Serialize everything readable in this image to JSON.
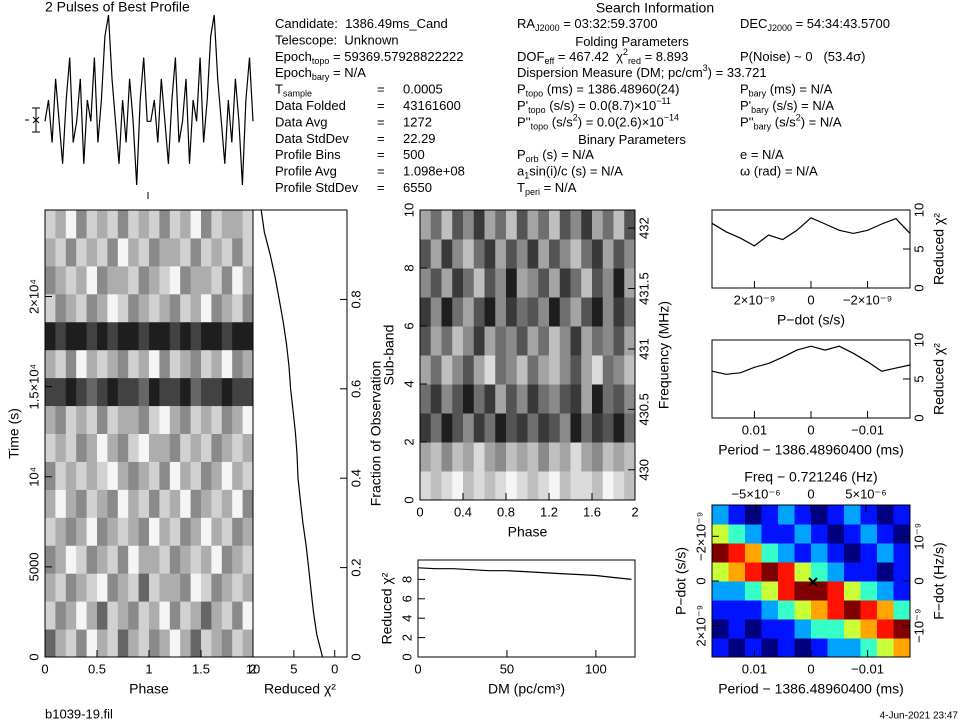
{
  "filename": "b1039-19.fil",
  "date": "4-Jun-2021 23:47",
  "info": {
    "rows": [
      [
        [
          "Candidate:  1386.49ms_Cand"
        ]
      ],
      [
        [
          "Telescope:  Unknown"
        ]
      ],
      [
        [
          "Epoch",
          {
            "sub": "topo"
          },
          " = 59369.57928822222"
        ]
      ],
      [
        [
          "Epoch",
          {
            "sub": "bary"
          },
          " = N/A"
        ]
      ],
      [
        [
          "T",
          {
            "sub": "sample"
          }
        ],
        [
          "="
        ],
        [
          "0.0005"
        ]
      ],
      [
        [
          "Data Folded"
        ],
        [
          "="
        ],
        [
          "43161600"
        ]
      ],
      [
        [
          "Data Avg"
        ],
        [
          "="
        ],
        [
          "1272"
        ]
      ],
      [
        [
          "Data StdDev"
        ],
        [
          "="
        ],
        [
          "22.29"
        ]
      ],
      [
        [
          "Profile Bins"
        ],
        [
          "="
        ],
        [
          "500"
        ]
      ],
      [
        [
          "Profile Avg"
        ],
        [
          "="
        ],
        [
          "1.098e+08"
        ]
      ],
      [
        [
          "Profile StdDev"
        ],
        [
          "="
        ],
        [
          "6550"
        ]
      ]
    ]
  },
  "search": {
    "title": "Search Information",
    "rows": [
      [
        [
          "RA",
          {
            "sub": "J2000"
          },
          " = 03:32:59.3700"
        ],
        [
          "DEC",
          {
            "sub": "J2000"
          },
          " = 54:34:43.5700"
        ]
      ],
      {
        "heading": "Folding Parameters"
      },
      [
        [
          "DOF",
          {
            "sub": "eff"
          },
          " = 467.42  χ",
          {
            "sup": "2"
          },
          {
            "sub": "red"
          },
          " = 8.893"
        ],
        [
          "P(Noise) ~ 0   (53.4σ)"
        ]
      ],
      [
        [
          "Dispersion Measure (DM; pc/cm",
          {
            "sup": "3"
          },
          ") = 33.721"
        ]
      ],
      [
        [
          "P",
          {
            "sub": "topo"
          },
          " (ms) = 1386.48960(24)"
        ],
        [
          "P",
          {
            "sub": "bary"
          },
          " (ms) = N/A"
        ]
      ],
      [
        [
          "P'",
          {
            "sub": "topo"
          },
          " (s/s) = 0.0(8.7)×10",
          {
            "sup": "−11"
          }
        ],
        [
          "P'",
          {
            "sub": "bary"
          },
          " (s/s) = N/A"
        ]
      ],
      [
        [
          "P''",
          {
            "sub": "topo"
          },
          " (s/s",
          {
            "sup": "2"
          },
          ") = 0.0(2.6)×10",
          {
            "sup": "−14"
          }
        ],
        [
          "P''",
          {
            "sub": "bary"
          },
          " (s/s",
          {
            "sup": "2"
          },
          ") = N/A"
        ]
      ],
      {
        "heading": "Binary Parameters"
      },
      [
        [
          "P",
          {
            "sub": "orb"
          },
          " (s) = N/A"
        ],
        [
          "e = N/A"
        ]
      ],
      [
        [
          "a",
          {
            "sub": "1"
          },
          "sin(i)/c (s) = N/A"
        ],
        [
          "ω (rad) = N/A"
        ]
      ],
      [
        [
          "T",
          {
            "sub": "peri"
          },
          " = N/A"
        ]
      ]
    ]
  },
  "chart_data": [
    {
      "type": "line",
      "title": "2 Pulses of Best Profile",
      "color": "#000000",
      "values": [
        5,
        6,
        4,
        7,
        5,
        3,
        6,
        8,
        4,
        5,
        7,
        3,
        6,
        5,
        8,
        4,
        6,
        9,
        10,
        7,
        5,
        3,
        6,
        4,
        7,
        5,
        2,
        6,
        8,
        5,
        5,
        6,
        4,
        7,
        5,
        3,
        6,
        8,
        4,
        5,
        7,
        3,
        6,
        5,
        8,
        4,
        6,
        9,
        10,
        7,
        5,
        3,
        6,
        4,
        7,
        5,
        2,
        6,
        8,
        5
      ]
    },
    {
      "type": "heatmap",
      "colormap": "gray",
      "xlabel": "Phase",
      "ylabel": "Time (s)",
      "xlim": [
        0,
        2
      ],
      "xticks": [
        0,
        0.5,
        1,
        1.5,
        2
      ],
      "ylim": [
        0,
        24800
      ],
      "yticks": [
        0,
        5000,
        {
          "value": 10000,
          "label": "10⁴"
        },
        {
          "value": 15000,
          "label": "1.5×10⁴"
        },
        {
          "value": 20000,
          "label": "2×10⁴"
        }
      ],
      "values": [
        [
          3,
          5,
          6,
          4,
          7,
          5,
          6,
          3,
          5,
          6,
          4,
          5,
          7,
          5,
          3,
          6,
          5,
          4,
          6,
          5
        ],
        [
          6,
          4,
          5,
          7,
          5,
          3,
          6,
          5,
          4,
          6,
          5,
          7,
          4,
          6,
          5,
          3,
          5,
          6,
          4,
          7
        ],
        [
          5,
          6,
          4,
          5,
          6,
          7,
          4,
          5,
          6,
          3,
          6,
          5,
          5,
          4,
          7,
          6,
          4,
          5,
          6,
          5
        ],
        [
          4,
          5,
          7,
          6,
          4,
          5,
          6,
          4,
          7,
          5,
          5,
          6,
          4,
          5,
          6,
          5,
          7,
          4,
          5,
          6
        ],
        [
          6,
          5,
          4,
          5,
          7,
          4,
          5,
          6,
          5,
          4,
          7,
          5,
          6,
          4,
          5,
          7,
          5,
          6,
          4,
          5
        ],
        [
          5,
          7,
          5,
          4,
          6,
          5,
          4,
          7,
          5,
          6,
          4,
          6,
          5,
          7,
          4,
          5,
          6,
          5,
          7,
          4
        ],
        [
          4,
          6,
          5,
          6,
          5,
          6,
          7,
          5,
          4,
          5,
          6,
          4,
          7,
          5,
          6,
          4,
          5,
          7,
          5,
          6
        ],
        [
          6,
          5,
          6,
          4,
          5,
          7,
          5,
          4,
          6,
          7,
          5,
          5,
          4,
          6,
          5,
          6,
          4,
          5,
          6,
          5
        ],
        [
          5,
          4,
          6,
          5,
          6,
          4,
          6,
          5,
          5,
          4,
          6,
          7,
          5,
          4,
          6,
          5,
          6,
          4,
          5,
          7
        ],
        [
          2,
          2,
          1,
          2,
          3,
          2,
          1,
          2,
          2,
          3,
          1,
          2,
          2,
          1,
          3,
          2,
          2,
          1,
          2,
          2
        ],
        [
          5,
          6,
          4,
          7,
          5,
          6,
          5,
          4,
          6,
          5,
          7,
          4,
          6,
          5,
          4,
          6,
          5,
          7,
          4,
          5
        ],
        [
          1,
          2,
          1,
          1,
          2,
          1,
          2,
          1,
          1,
          2,
          1,
          1,
          2,
          1,
          2,
          1,
          1,
          2,
          1,
          1
        ],
        [
          6,
          4,
          5,
          6,
          4,
          5,
          7,
          6,
          4,
          5,
          6,
          5,
          4,
          6,
          5,
          7,
          4,
          5,
          6,
          4
        ],
        [
          4,
          5,
          6,
          5,
          7,
          4,
          5,
          5,
          6,
          4,
          5,
          6,
          7,
          4,
          5,
          5,
          6,
          4,
          7,
          5
        ],
        [
          5,
          6,
          4,
          6,
          5,
          6,
          4,
          7,
          5,
          6,
          4,
          5,
          5,
          6,
          4,
          6,
          5,
          6,
          4,
          6
        ],
        [
          6,
          5,
          7,
          4,
          6,
          5,
          6,
          4,
          6,
          5,
          6,
          4,
          6,
          5,
          7,
          4,
          6,
          5,
          5,
          6
        ]
      ]
    },
    {
      "type": "trace",
      "color": "#000000",
      "xlabel": "Reduced χ²",
      "y2label": "Fraction of Observation",
      "xlim": [
        10,
        -1.5
      ],
      "xticks": [
        10,
        5,
        0
      ],
      "y2lim": [
        0,
        1
      ],
      "y2ticks": [
        0,
        0.2,
        0.4,
        0.6,
        0.8
      ],
      "y": [
        0,
        0.05,
        0.1,
        0.15,
        0.2,
        0.25,
        0.3,
        0.35,
        0.4,
        0.45,
        0.5,
        0.55,
        0.6,
        0.65,
        0.7,
        0.75,
        0.8,
        0.85,
        0.9,
        0.95,
        1
      ],
      "values": [
        1.5,
        2.2,
        2.6,
        2.9,
        3.2,
        3.5,
        3.9,
        4.2,
        4.5,
        4.6,
        4.8,
        5.1,
        5.4,
        5.6,
        5.9,
        6.3,
        6.8,
        7.3,
        7.9,
        8.6,
        9.0
      ]
    },
    {
      "type": "heatmap",
      "colormap": "gray",
      "xlabel": "Phase",
      "ylabel": "Sub-band",
      "y2label": "Frequency (MHz)",
      "xlim": [
        0,
        2
      ],
      "xticks": [
        0,
        0.4,
        0.8,
        1.2,
        1.6,
        2
      ],
      "ylim": [
        0,
        10
      ],
      "yticks": [
        0,
        2,
        4,
        6,
        8,
        10
      ],
      "y2lim": [
        429.75,
        432.15
      ],
      "y2ticks": [
        430,
        430.5,
        431,
        431.5,
        432
      ],
      "values": [
        [
          8,
          7,
          8,
          9,
          7,
          8,
          7,
          8,
          9,
          8,
          7,
          8,
          9,
          7,
          8,
          8,
          7,
          9,
          8,
          7
        ],
        [
          6,
          7,
          5,
          7,
          6,
          8,
          6,
          5,
          7,
          6,
          7,
          5,
          7,
          6,
          8,
          6,
          5,
          7,
          6,
          7
        ],
        [
          2,
          4,
          1,
          3,
          5,
          2,
          4,
          1,
          3,
          2,
          4,
          2,
          3,
          5,
          1,
          4,
          2,
          3,
          1,
          4
        ],
        [
          4,
          2,
          5,
          3,
          1,
          4,
          2,
          6,
          3,
          5,
          2,
          4,
          5,
          3,
          2,
          6,
          1,
          4,
          3,
          5
        ],
        [
          6,
          4,
          7,
          5,
          3,
          6,
          8,
          4,
          5,
          7,
          4,
          6,
          7,
          5,
          3,
          6,
          8,
          4,
          5,
          7
        ],
        [
          3,
          6,
          4,
          7,
          5,
          2,
          6,
          4,
          5,
          3,
          6,
          4,
          7,
          5,
          2,
          6,
          4,
          5,
          3,
          6
        ],
        [
          2,
          5,
          1,
          4,
          6,
          3,
          1,
          5,
          2,
          4,
          3,
          5,
          1,
          4,
          6,
          3,
          1,
          5,
          2,
          4
        ],
        [
          5,
          3,
          6,
          2,
          4,
          7,
          3,
          5,
          1,
          6,
          5,
          3,
          6,
          2,
          4,
          7,
          3,
          5,
          1,
          6
        ],
        [
          3,
          6,
          2,
          5,
          7,
          4,
          2,
          6,
          3,
          5,
          2,
          6,
          3,
          5,
          7,
          4,
          2,
          6,
          3,
          5
        ],
        [
          6,
          4,
          7,
          3,
          5,
          2,
          6,
          4,
          7,
          3,
          6,
          4,
          7,
          3,
          5,
          2,
          6,
          4,
          7,
          3
        ]
      ]
    },
    {
      "type": "line",
      "color": "#000000",
      "xlabel": "DM (pc/cm³)",
      "ylabel": "Reduced χ²",
      "xlim": [
        0,
        122
      ],
      "xticks": [
        0,
        50,
        100
      ],
      "ylim": [
        0,
        10
      ],
      "yticks": [
        0,
        2,
        4,
        6,
        8
      ],
      "x": [
        0,
        10,
        20,
        30,
        40,
        50,
        60,
        70,
        80,
        90,
        100,
        110,
        120
      ],
      "values": [
        9.2,
        9.1,
        9.1,
        9.0,
        8.9,
        8.9,
        8.8,
        8.7,
        8.6,
        8.5,
        8.4,
        8.2,
        8.0
      ]
    },
    {
      "type": "line",
      "color": "#000000",
      "axis": "y2",
      "xlabel": "P−dot (s/s)",
      "y2label": "Reduced χ²",
      "xlim": [
        3.5e-09,
        -3.5e-09
      ],
      "xticks": [
        {
          "value": 2e-09,
          "label": "2×10⁻⁹"
        },
        0,
        {
          "value": -2e-09,
          "label": "−2×10⁻⁹"
        }
      ],
      "y2lim": [
        0,
        10
      ],
      "y2ticks": [
        0,
        5,
        10
      ],
      "x": [
        3.5e-09,
        3e-09,
        2.5e-09,
        2e-09,
        1.5e-09,
        1e-09,
        5e-10,
        0,
        -5e-10,
        -1e-09,
        -1.5e-09,
        -2e-09,
        -2.5e-09,
        -3e-09,
        -3.5e-09
      ],
      "values": [
        8.3,
        7.2,
        6.4,
        5.4,
        6.8,
        6.2,
        7.4,
        9.0,
        8.2,
        7.4,
        7.0,
        7.4,
        8.2,
        8.9,
        7.0
      ]
    },
    {
      "type": "line",
      "color": "#000000",
      "axis": "y2",
      "xlabel": "Period − 1386.48960400 (ms)",
      "y2label": "Reduced χ²",
      "xlim": [
        0.0175,
        -0.0175
      ],
      "xticks": [
        0.01,
        0,
        {
          "value": -0.01,
          "label": "−0.01"
        }
      ],
      "y2lim": [
        0,
        10
      ],
      "y2ticks": [
        0,
        5,
        10
      ],
      "x": [
        0.0175,
        0.015,
        0.0125,
        0.01,
        0.0075,
        0.005,
        0.0025,
        0,
        -0.0025,
        -0.005,
        -0.0075,
        -0.01,
        -0.0125,
        -0.015,
        -0.0175
      ],
      "values": [
        6.0,
        5.6,
        5.8,
        6.5,
        7.0,
        7.8,
        8.7,
        9.2,
        8.7,
        9.2,
        8.3,
        7.2,
        6.0,
        6.4,
        6.8
      ]
    },
    {
      "type": "heatmap",
      "colormap": "jet",
      "xlabel": "Period − 1386.48960400 (ms)",
      "ylabel": "P−dot (s/s)",
      "x2label": "Freq − 0.721246 (Hz)",
      "y2label": "F−dot (Hz/s)",
      "xlim": [
        0.0175,
        -0.0175
      ],
      "xticks": [
        0.01,
        0,
        {
          "value": -0.01,
          "label": "−0.01"
        }
      ],
      "ylim": [
        3.4e-09,
        -3.4e-09
      ],
      "yticks": [
        {
          "value": 2e-09,
          "label": "2×10⁻⁹"
        },
        0,
        {
          "value": -2e-09,
          "label": "−2×10⁻⁹"
        }
      ],
      "x2lim": [
        -9e-06,
        9e-06
      ],
      "x2ticks": [
        {
          "value": -5e-06,
          "label": "−5×10⁻⁶"
        },
        0,
        {
          "value": 5e-06,
          "label": "5×10⁻⁶"
        }
      ],
      "y2lim": [
        -1.7e-09,
        1.7e-09
      ],
      "y2ticks": [
        {
          "value": -1e-09,
          "label": "−10⁻⁹"
        },
        0,
        {
          "value": 1e-09,
          "label": "10⁻⁹"
        }
      ],
      "values": [
        [
          3,
          2,
          3,
          2,
          3,
          2,
          3,
          4,
          4,
          5,
          6,
          7
        ],
        [
          2,
          3,
          2,
          3,
          3,
          4,
          5,
          5,
          6,
          7,
          8,
          9
        ],
        [
          3,
          3,
          3,
          4,
          5,
          6,
          7,
          8,
          9,
          8,
          7,
          5
        ],
        [
          4,
          4,
          5,
          6,
          8,
          9,
          9,
          8,
          6,
          5,
          4,
          3
        ],
        [
          6,
          7,
          8,
          9,
          8,
          6,
          5,
          4,
          3,
          3,
          2,
          3
        ],
        [
          9,
          8,
          7,
          5,
          4,
          3,
          4,
          3,
          2,
          3,
          4,
          3
        ],
        [
          6,
          5,
          4,
          3,
          3,
          4,
          3,
          2,
          3,
          4,
          3,
          2
        ],
        [
          4,
          3,
          2,
          3,
          4,
          3,
          2,
          3,
          4,
          3,
          2,
          3
        ]
      ]
    }
  ]
}
